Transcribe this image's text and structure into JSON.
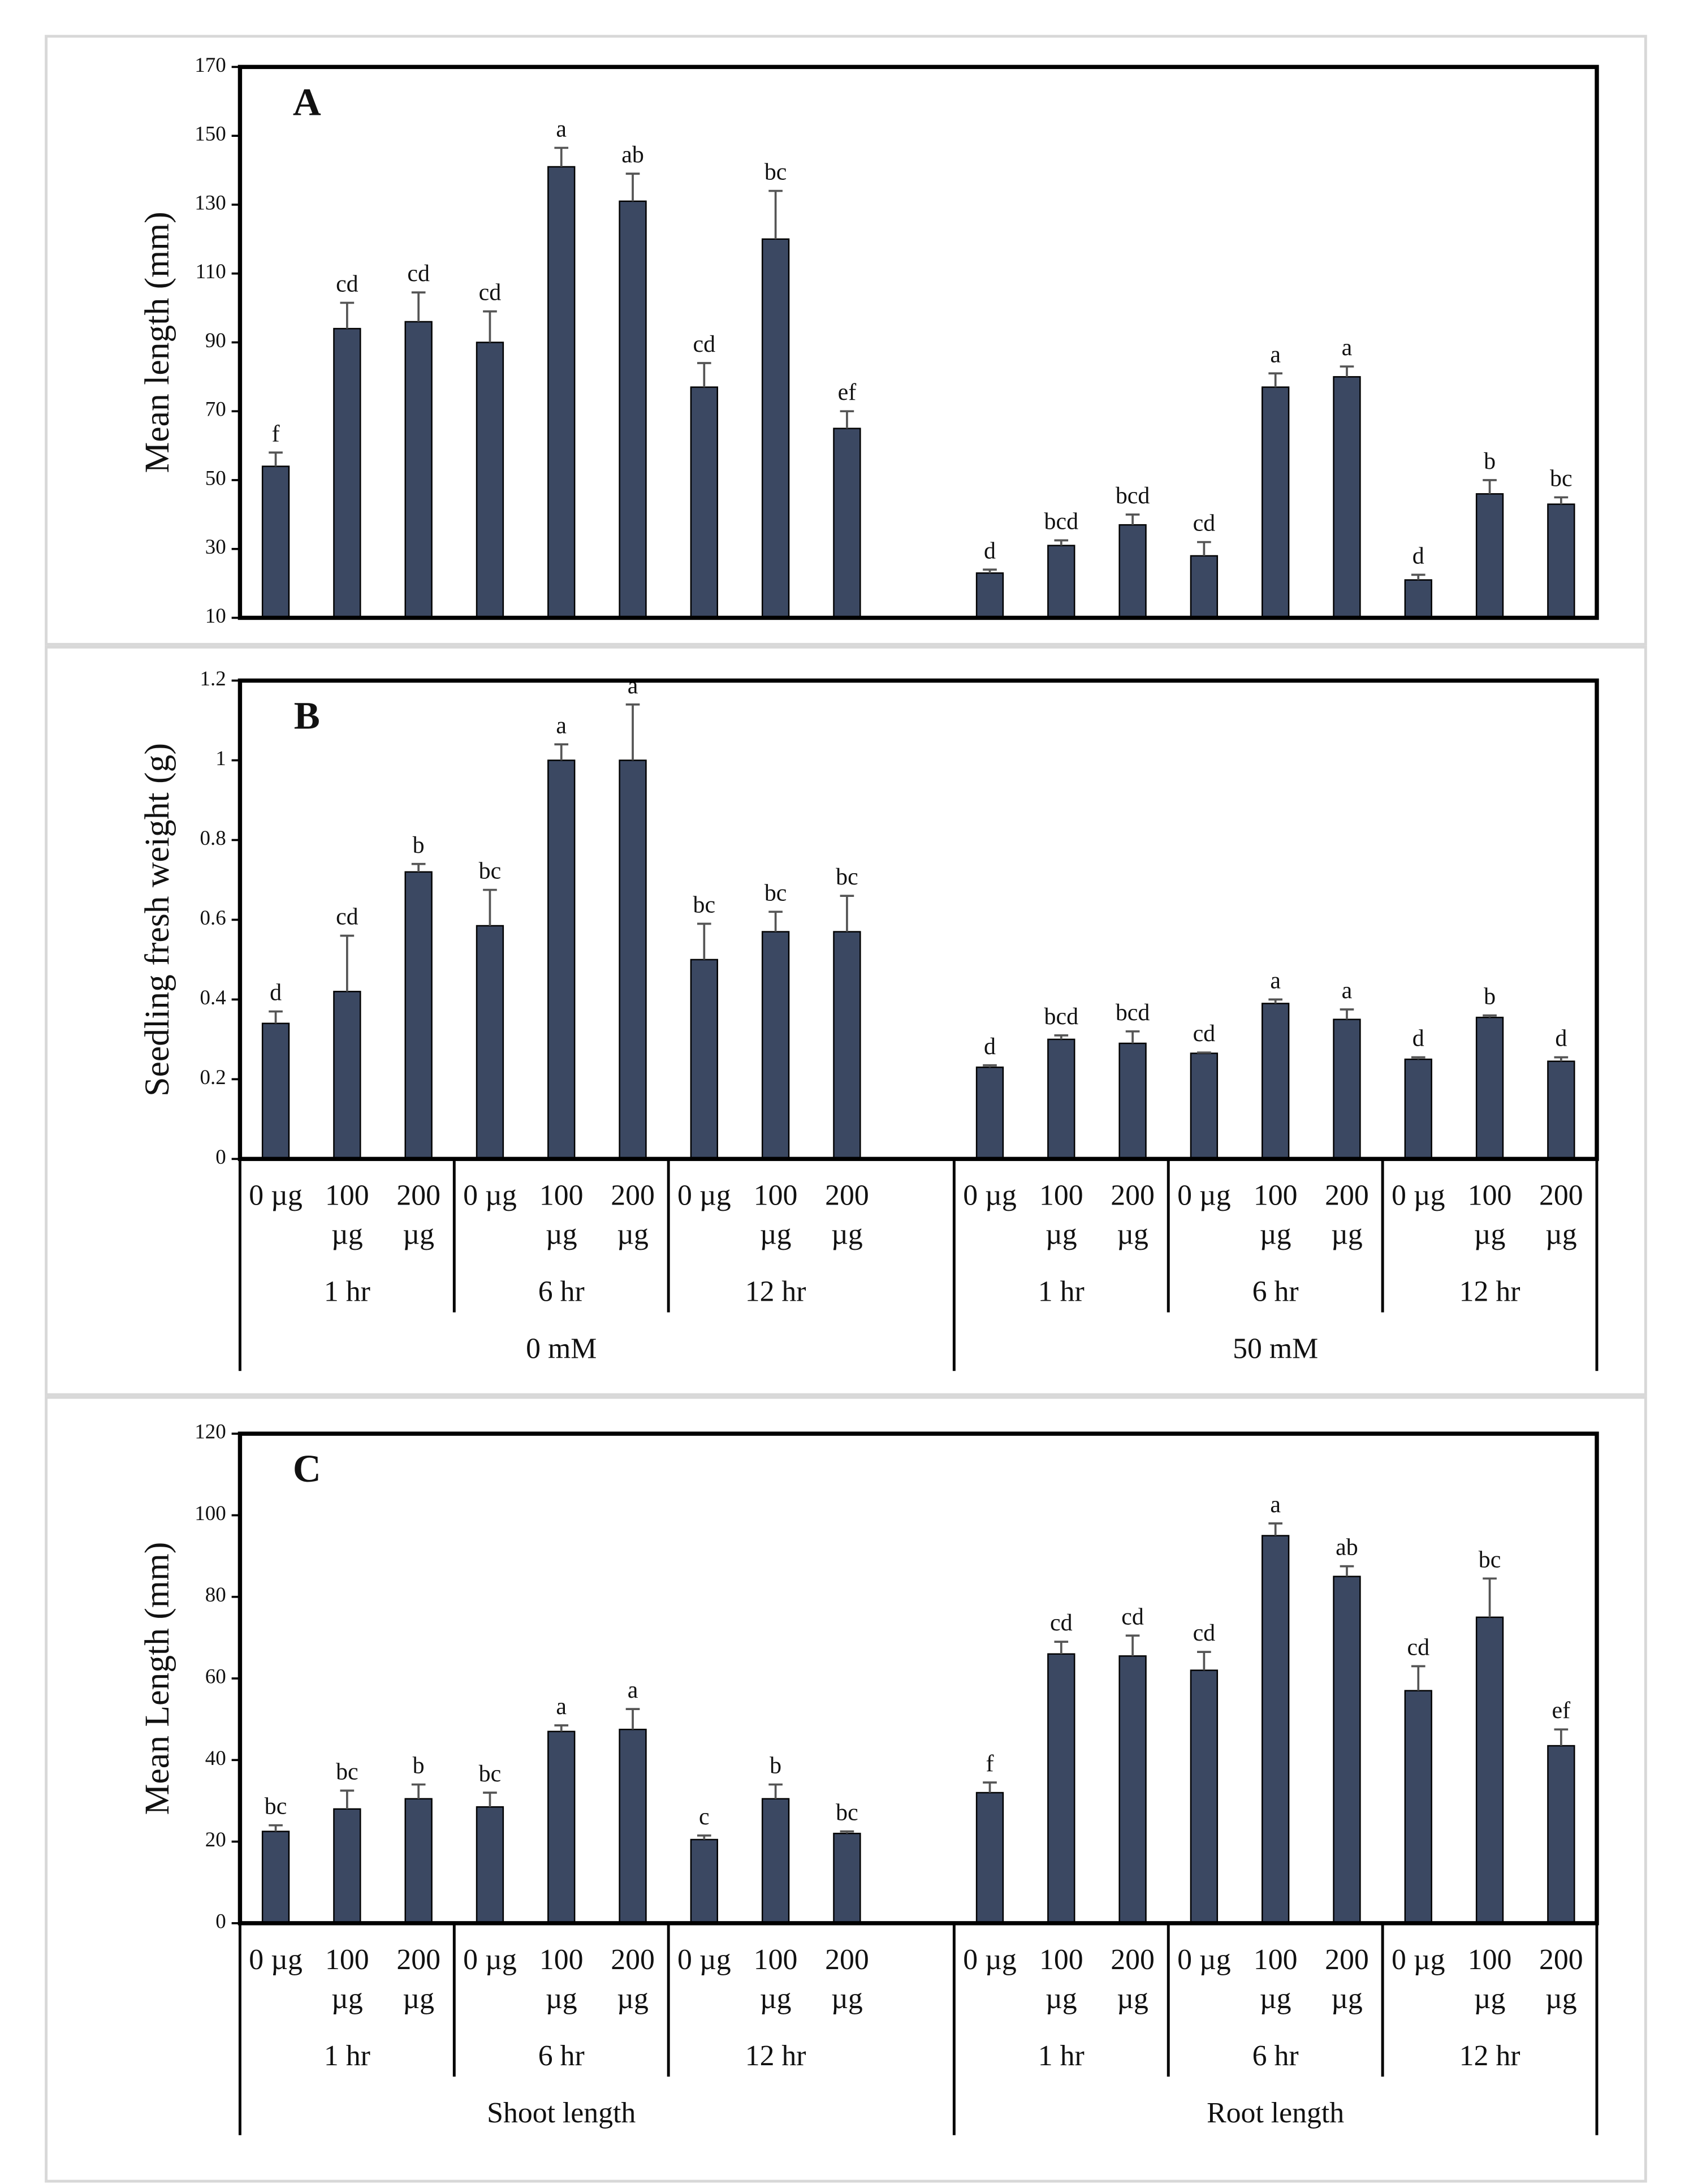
{
  "chart_data": [
    {
      "type": "bar",
      "panel_label": "A",
      "y_label": "Mean length (mm)",
      "color": "#3b4862",
      "ylim": [
        10,
        170
      ],
      "yticks": [
        10,
        30,
        50,
        70,
        90,
        110,
        130,
        150,
        170
      ],
      "values": [
        54,
        94,
        96,
        90,
        141,
        131,
        77,
        120,
        65,
        null,
        23,
        31,
        37,
        28,
        77,
        80,
        21,
        46,
        43
      ],
      "errors": [
        4,
        7.5,
        8.5,
        9,
        5.5,
        8,
        7,
        14,
        5,
        null,
        1,
        1.5,
        3,
        4,
        4,
        3,
        1.5,
        4,
        2
      ],
      "significance": [
        "f",
        "cd",
        "cd",
        "cd",
        "a",
        "ab",
        "cd",
        "bc",
        "ef",
        null,
        "d",
        "bcd",
        "bcd",
        "cd",
        "a",
        "a",
        "d",
        "b",
        "bc"
      ]
    },
    {
      "type": "bar",
      "panel_label": "B",
      "y_label": "Seedling fresh weight (g)",
      "color": "#3b4862",
      "ylim": [
        0,
        1.2
      ],
      "yticks": [
        0,
        0.2,
        0.4,
        0.6,
        0.8,
        1,
        1.2
      ],
      "categories": [
        "0 µg",
        "100 µg",
        "200 µg",
        "0 µg",
        "100 µg",
        "200 µg",
        "0 µg",
        "100 µg",
        "200 µg",
        null,
        "0 µg",
        "100 µg",
        "200 µg",
        "0 µg",
        "100 µg",
        "200 µg",
        "0 µg",
        "100 µg",
        "200 µg"
      ],
      "groups": [
        "1 hr",
        "6 hr",
        "12 hr",
        "1 hr",
        "6 hr",
        "12 hr"
      ],
      "supergroups": [
        "0 mM",
        "50 mM"
      ],
      "values": [
        0.34,
        0.42,
        0.72,
        0.585,
        1.0,
        1.0,
        0.5,
        0.57,
        0.57,
        null,
        0.23,
        0.3,
        0.29,
        0.265,
        0.39,
        0.35,
        0.25,
        0.355,
        0.245
      ],
      "errors": [
        0.03,
        0.14,
        0.02,
        0.09,
        0.04,
        0.14,
        0.09,
        0.05,
        0.09,
        null,
        0.005,
        0.01,
        0.03,
        0.002,
        0.01,
        0.025,
        0.005,
        0.005,
        0.01
      ],
      "significance": [
        "d",
        "cd",
        "b",
        "bc",
        "a",
        "a",
        "bc",
        "bc",
        "bc",
        null,
        "d",
        "bcd",
        "bcd",
        "cd",
        "a",
        "a",
        "d",
        "b",
        "d"
      ]
    },
    {
      "type": "bar",
      "panel_label": "C",
      "y_label": "Mean Length (mm)",
      "color": "#3b4862",
      "ylim": [
        0,
        120
      ],
      "yticks": [
        0,
        20,
        40,
        60,
        80,
        100,
        120
      ],
      "categories": [
        "0 µg",
        "100 µg",
        "200 µg",
        "0 µg",
        "100 µg",
        "200 µg",
        "0 µg",
        "100 µg",
        "200 µg",
        null,
        "0 µg",
        "100 µg",
        "200 µg",
        "0 µg",
        "100 µg",
        "200 µg",
        "0 µg",
        "100 µg",
        "200 µg"
      ],
      "groups": [
        "1 hr",
        "6 hr",
        "12 hr",
        "1 hr",
        "6 hr",
        "12 hr"
      ],
      "supergroups": [
        "Shoot length",
        "Root length"
      ],
      "values": [
        22.5,
        28,
        30.5,
        28.5,
        47,
        47.5,
        20.5,
        30.5,
        22,
        null,
        32,
        66,
        65.5,
        62,
        95,
        85,
        57,
        75,
        43.5
      ],
      "errors": [
        1.5,
        4.5,
        3.5,
        3.5,
        1.5,
        5,
        1,
        3.5,
        0.5,
        null,
        2.5,
        3,
        5,
        4.5,
        3,
        2.5,
        6,
        9.5,
        4
      ],
      "significance": [
        "bc",
        "bc",
        "b",
        "bc",
        "a",
        "a",
        "c",
        "b",
        "bc",
        null,
        "f",
        "cd",
        "cd",
        "cd",
        "a",
        "ab",
        "cd",
        "bc",
        "ef"
      ]
    }
  ]
}
